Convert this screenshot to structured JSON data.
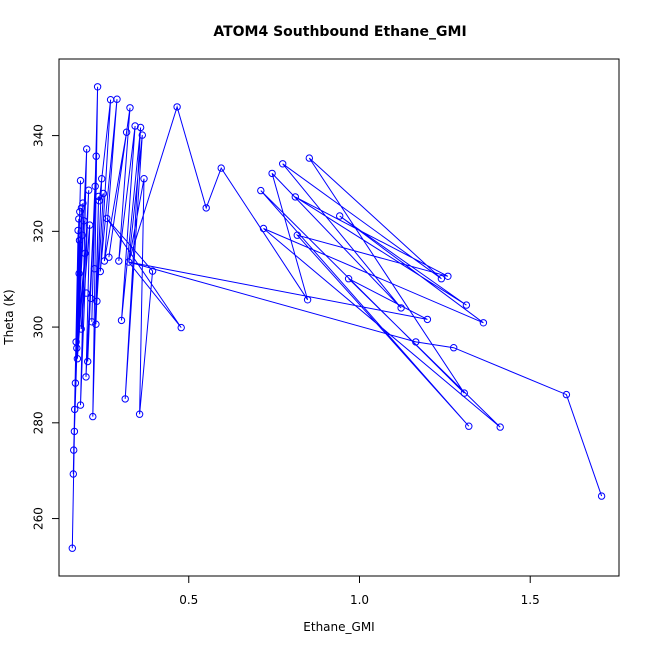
{
  "chart_data": {
    "type": "line",
    "title": "ATOM4 Southbound Ethane_GMI",
    "xlabel": "Ethane_GMI",
    "ylabel": "Theta (K)",
    "xlim": [
      0.12,
      1.76
    ],
    "ylim": [
      248,
      356
    ],
    "xticks": [
      0.5,
      1.0,
      1.5
    ],
    "xtick_labels": [
      "0.5",
      "1.0",
      "1.5"
    ],
    "yticks": [
      260,
      280,
      300,
      320,
      340
    ],
    "ytick_labels": [
      "260",
      "280",
      "300",
      "320",
      "340"
    ],
    "grid": false,
    "color": "#0000ff",
    "series": [
      {
        "marker": "open-circle",
        "points": [
          [
            0.159,
            253.8
          ],
          [
            0.162,
            269.3
          ],
          [
            0.163,
            274.3
          ],
          [
            0.165,
            278.2
          ],
          [
            0.166,
            282.8
          ],
          [
            0.168,
            288.3
          ],
          [
            0.17,
            296.9
          ],
          [
            0.172,
            295.6
          ],
          [
            0.174,
            293.4
          ],
          [
            0.176,
            320.2
          ],
          [
            0.178,
            322.6
          ],
          [
            0.18,
            318.1
          ],
          [
            0.179,
            311.2
          ],
          [
            0.181,
            324.1
          ],
          [
            0.183,
            330.6
          ],
          [
            0.186,
            324.9
          ],
          [
            0.188,
            319.2
          ],
          [
            0.185,
            299.6
          ],
          [
            0.183,
            283.7
          ],
          [
            0.19,
            325.9
          ],
          [
            0.193,
            322.2
          ],
          [
            0.196,
            315.4
          ],
          [
            0.2,
            307.1
          ],
          [
            0.204,
            292.8
          ],
          [
            0.199,
            289.6
          ],
          [
            0.201,
            337.2
          ],
          [
            0.207,
            328.6
          ],
          [
            0.21,
            321.3
          ],
          [
            0.213,
            306.0
          ],
          [
            0.216,
            301.1
          ],
          [
            0.219,
            281.3
          ],
          [
            0.224,
            312.2
          ],
          [
            0.226,
            329.4
          ],
          [
            0.229,
            335.7
          ],
          [
            0.233,
            350.2
          ],
          [
            0.236,
            327.3
          ],
          [
            0.238,
            326.4
          ],
          [
            0.241,
            311.6
          ],
          [
            0.228,
            300.6
          ],
          [
            0.231,
            305.4
          ],
          [
            0.245,
            331.0
          ],
          [
            0.25,
            327.9
          ],
          [
            0.253,
            313.8
          ],
          [
            0.26,
            322.7
          ],
          [
            0.266,
            314.6
          ],
          [
            0.271,
            347.5
          ],
          [
            0.29,
            347.6
          ],
          [
            0.295,
            313.8
          ],
          [
            0.303,
            301.4
          ],
          [
            0.314,
            285.0
          ],
          [
            0.318,
            340.7
          ],
          [
            0.324,
            313.6
          ],
          [
            0.328,
            345.8
          ],
          [
            0.343,
            342.0
          ],
          [
            0.359,
            341.7
          ],
          [
            0.364,
            340.1
          ],
          [
            0.356,
            281.8
          ],
          [
            0.369,
            331.0
          ],
          [
            0.394,
            311.7
          ],
          [
            0.478,
            299.9
          ],
          [
            0.466,
            346.0
          ],
          [
            0.551,
            324.9
          ],
          [
            0.595,
            333.2
          ],
          [
            0.711,
            328.5
          ],
          [
            0.719,
            320.6
          ],
          [
            0.744,
            332.1
          ],
          [
            0.775,
            334.1
          ],
          [
            0.812,
            327.2
          ],
          [
            0.818,
            319.2
          ],
          [
            0.848,
            305.7
          ],
          [
            0.853,
            335.3
          ],
          [
            0.942,
            323.2
          ],
          [
            0.968,
            310.1
          ],
          [
            1.122,
            304.0
          ],
          [
            1.165,
            296.9
          ],
          [
            1.199,
            301.6
          ],
          [
            1.24,
            310.1
          ],
          [
            1.259,
            310.6
          ],
          [
            1.276,
            295.7
          ],
          [
            1.307,
            286.2
          ],
          [
            1.313,
            304.6
          ],
          [
            1.32,
            279.3
          ],
          [
            1.363,
            300.9
          ],
          [
            1.412,
            279.1
          ],
          [
            1.606,
            285.9
          ],
          [
            1.709,
            264.7
          ]
        ],
        "path": [
          [
            0.159,
            253.8
          ],
          [
            0.176,
            320.2
          ],
          [
            0.162,
            269.3
          ],
          [
            0.18,
            318.1
          ],
          [
            0.163,
            274.3
          ],
          [
            0.183,
            330.6
          ],
          [
            0.165,
            278.2
          ],
          [
            0.186,
            324.9
          ],
          [
            0.166,
            282.8
          ],
          [
            0.19,
            325.9
          ],
          [
            0.168,
            288.3
          ],
          [
            0.193,
            322.2
          ],
          [
            0.17,
            296.9
          ],
          [
            0.178,
            322.6
          ],
          [
            0.172,
            295.6
          ],
          [
            0.196,
            315.4
          ],
          [
            0.174,
            293.4
          ],
          [
            0.201,
            337.2
          ],
          [
            0.183,
            283.7
          ],
          [
            0.207,
            328.6
          ],
          [
            0.185,
            299.6
          ],
          [
            0.21,
            321.3
          ],
          [
            0.199,
            289.6
          ],
          [
            0.226,
            329.4
          ],
          [
            0.204,
            292.8
          ],
          [
            0.229,
            335.7
          ],
          [
            0.216,
            301.1
          ],
          [
            0.233,
            350.2
          ],
          [
            0.219,
            281.3
          ],
          [
            0.236,
            327.3
          ],
          [
            0.228,
            300.6
          ],
          [
            0.245,
            331.0
          ],
          [
            0.231,
            305.4
          ],
          [
            0.25,
            327.9
          ],
          [
            0.238,
            326.4
          ],
          [
            0.271,
            347.5
          ],
          [
            0.241,
            311.6
          ],
          [
            0.29,
            347.6
          ],
          [
            0.253,
            313.8
          ],
          [
            0.318,
            340.7
          ],
          [
            0.266,
            314.6
          ],
          [
            0.328,
            345.8
          ],
          [
            0.295,
            313.8
          ],
          [
            0.343,
            342.0
          ],
          [
            0.303,
            301.4
          ],
          [
            0.359,
            341.7
          ],
          [
            0.314,
            285.0
          ],
          [
            0.364,
            340.1
          ],
          [
            0.324,
            313.6
          ],
          [
            0.369,
            331.0
          ],
          [
            0.356,
            281.8
          ],
          [
            0.394,
            311.7
          ],
          [
            0.26,
            322.7
          ],
          [
            0.478,
            299.9
          ],
          [
            0.324,
            313.6
          ],
          [
            0.466,
            346.0
          ],
          [
            0.551,
            324.9
          ],
          [
            0.595,
            333.2
          ],
          [
            0.848,
            305.7
          ],
          [
            0.744,
            332.1
          ],
          [
            1.122,
            304.0
          ],
          [
            0.775,
            334.1
          ],
          [
            1.24,
            310.1
          ],
          [
            0.853,
            335.3
          ],
          [
            1.307,
            286.2
          ],
          [
            0.711,
            328.5
          ],
          [
            1.32,
            279.3
          ],
          [
            0.818,
            319.2
          ],
          [
            1.259,
            310.6
          ],
          [
            0.812,
            327.2
          ],
          [
            1.313,
            304.6
          ],
          [
            0.942,
            323.2
          ],
          [
            1.363,
            300.9
          ],
          [
            0.719,
            320.6
          ],
          [
            1.412,
            279.1
          ],
          [
            0.968,
            310.1
          ],
          [
            1.199,
            301.6
          ],
          [
            0.324,
            313.6
          ],
          [
            1.165,
            296.9
          ],
          [
            1.276,
            295.7
          ],
          [
            1.606,
            285.9
          ],
          [
            1.709,
            264.7
          ]
        ]
      }
    ]
  }
}
